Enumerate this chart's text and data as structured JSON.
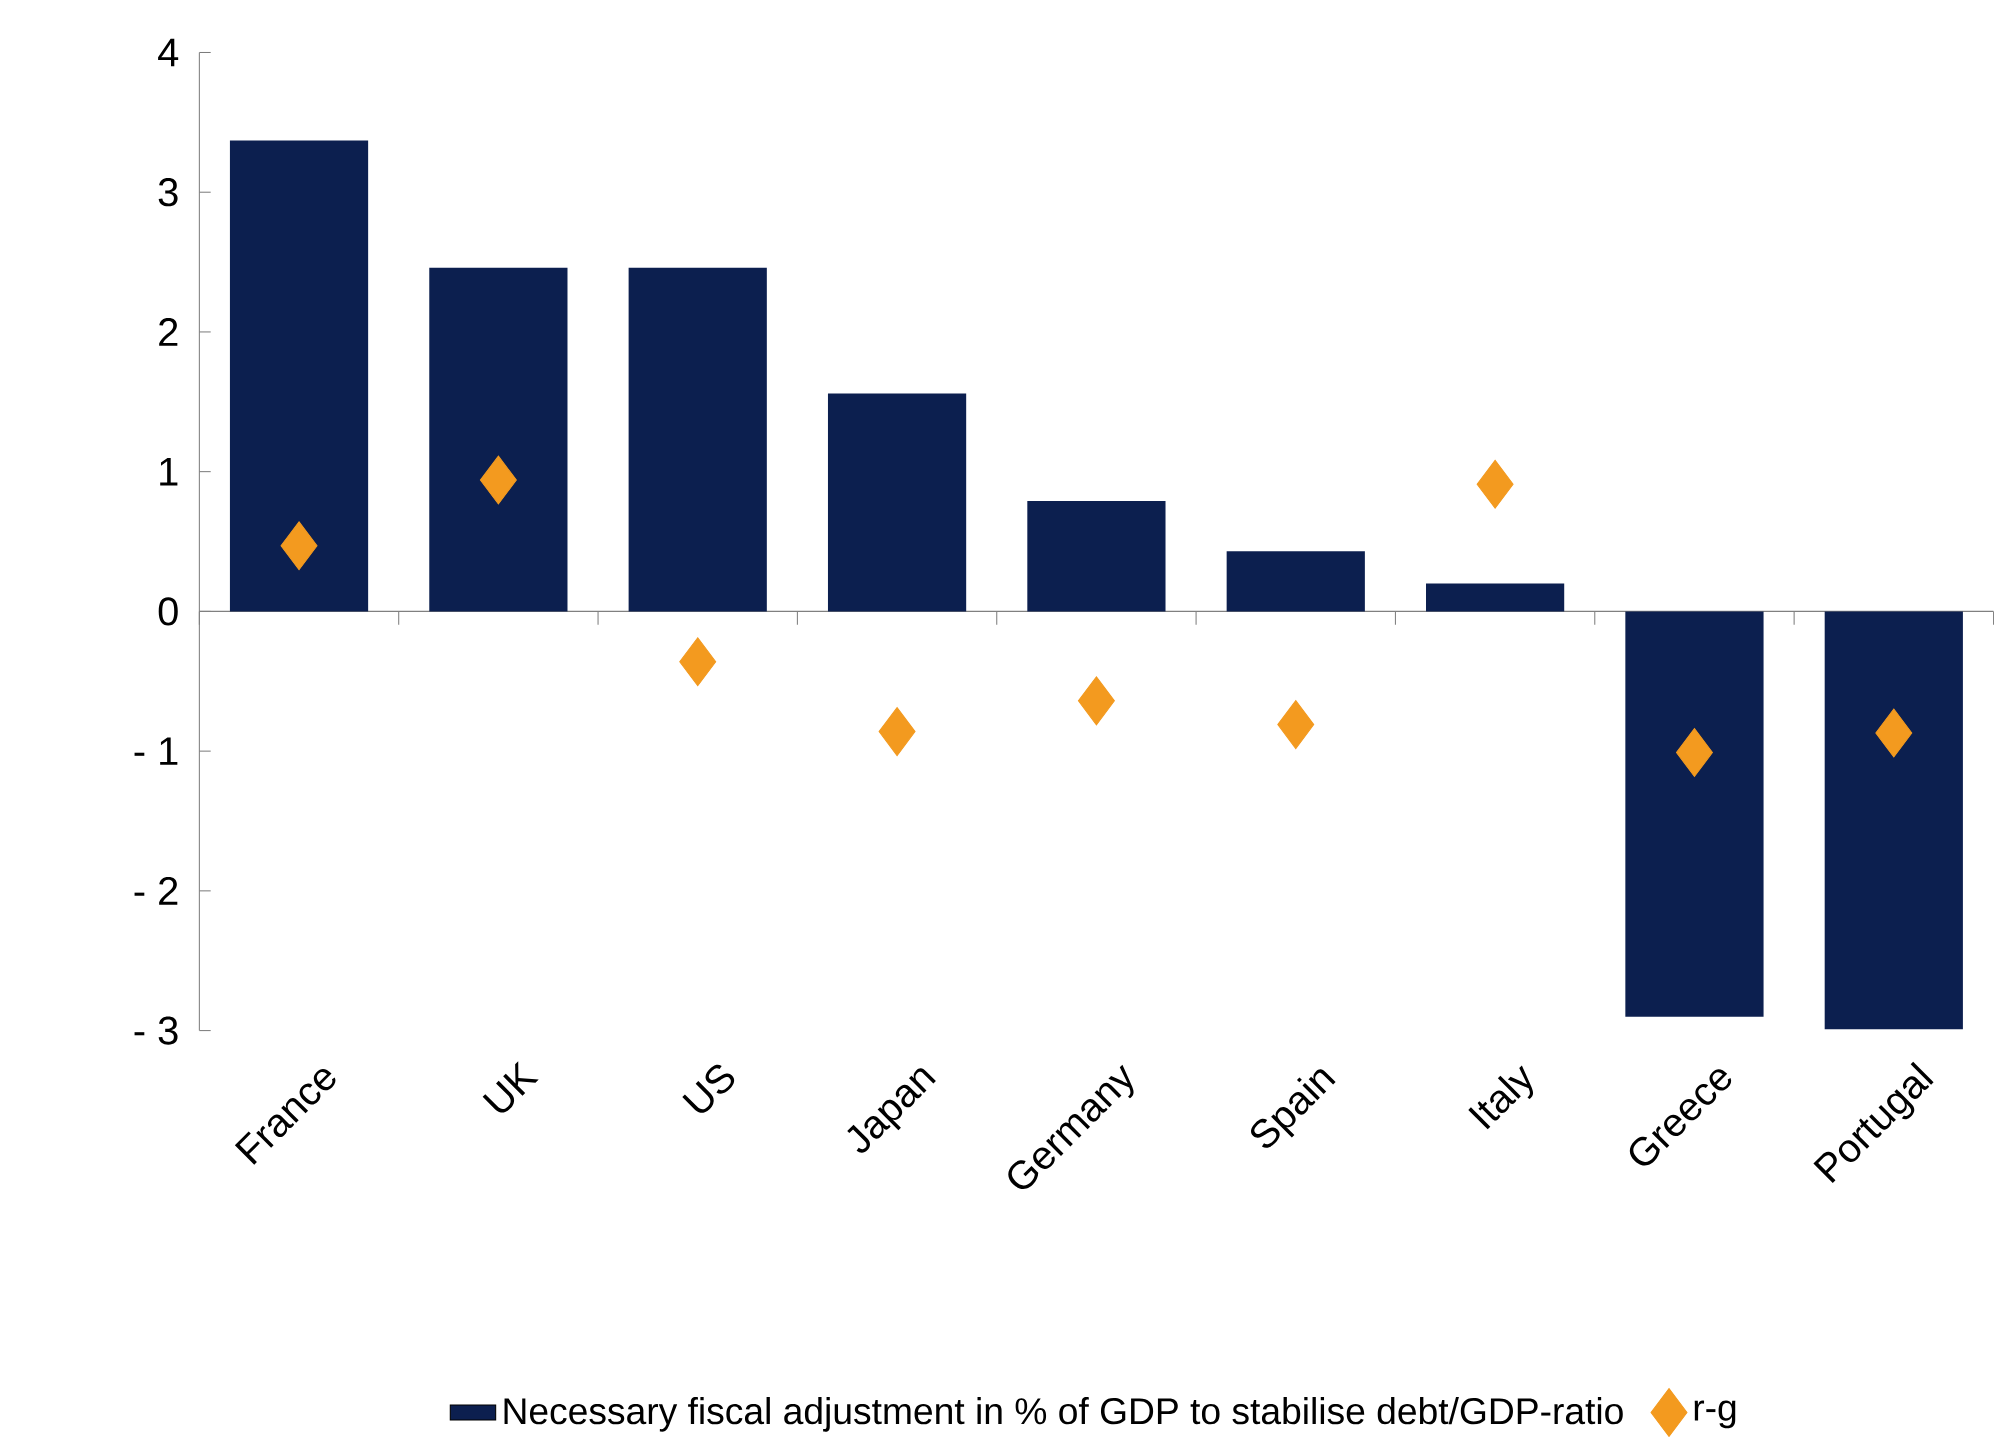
{
  "chart_data": {
    "type": "bar",
    "categories": [
      "France",
      "UK",
      "US",
      "Japan",
      "Germany",
      "Spain",
      "Italy",
      "Greece",
      "Portugal"
    ],
    "series": [
      {
        "name": "Necessary fiscal adjustment in % of GDP to stabilise debt/GDP-ratio",
        "color": "#0c1f4f",
        "values": [
          3.37,
          2.46,
          2.46,
          1.56,
          0.79,
          0.43,
          0.2,
          -2.9,
          -2.99
        ]
      },
      {
        "name": "r-g",
        "type": "scatter",
        "marker": "diamond",
        "color": "#f39a1f",
        "values": [
          0.47,
          0.94,
          -0.36,
          -0.86,
          -0.64,
          -0.81,
          0.91,
          -1.01,
          -0.87
        ]
      }
    ],
    "ylim": [
      -3,
      4
    ],
    "yticks": [
      {
        "value": -3,
        "label": "- 3"
      },
      {
        "value": -2,
        "label": "- 2"
      },
      {
        "value": -1,
        "label": "- 1"
      },
      0,
      1,
      2,
      3,
      4
    ],
    "legend": "bottom"
  }
}
